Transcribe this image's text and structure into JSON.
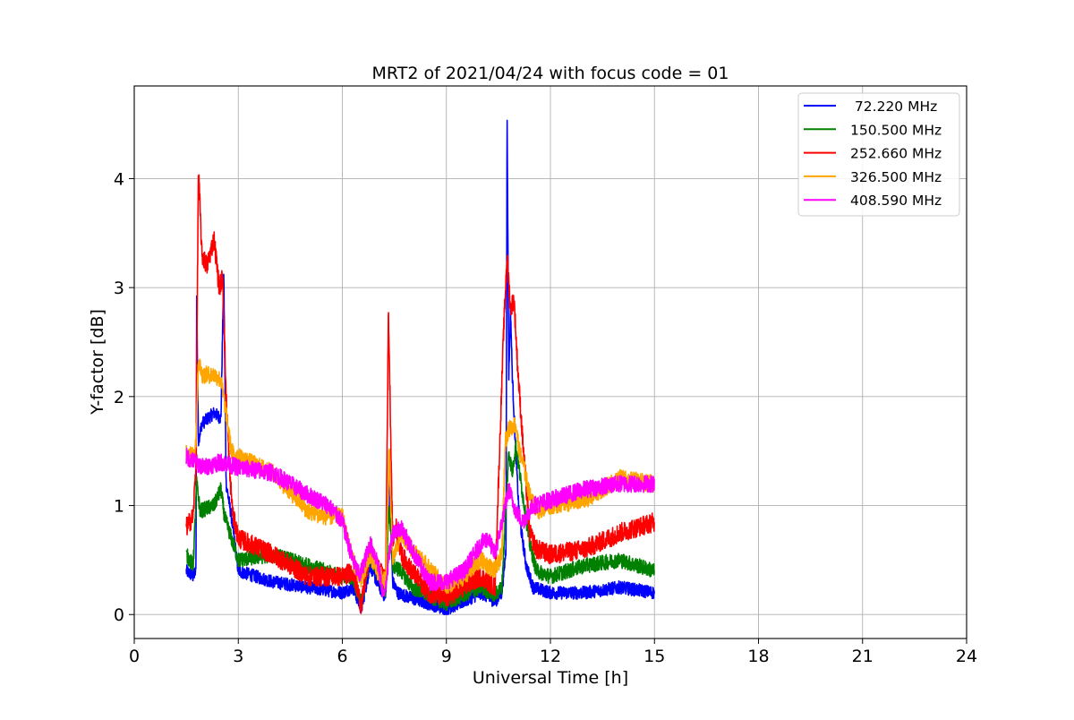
{
  "chart_data": {
    "type": "line",
    "title": "MRT2 of 2021/04/24 with focus code = 01",
    "xlabel": "Universal Time [h]",
    "ylabel": "Y-factor [dB]",
    "xlim": [
      0,
      24
    ],
    "ylim": [
      -0.22,
      4.85
    ],
    "xticks": [
      0,
      3,
      6,
      9,
      12,
      15,
      18,
      21,
      24
    ],
    "xtick_labels": [
      "0",
      "3",
      "6",
      "9",
      "12",
      "15",
      "18",
      "21",
      "24"
    ],
    "yticks": [
      0,
      1,
      2,
      3,
      4
    ],
    "ytick_labels": [
      "0",
      "1",
      "2",
      "3",
      "4"
    ],
    "grid": true,
    "legend_position": "top-right",
    "series": [
      {
        "name": " 72.220 MHz",
        "color": "#0000ff",
        "noise": 0.06,
        "x": [
          1.5,
          1.7,
          1.78,
          1.8,
          1.85,
          1.95,
          2.3,
          2.5,
          2.58,
          2.65,
          2.8,
          3.0,
          4.0,
          5.0,
          6.0,
          6.3,
          6.55,
          6.8,
          7.0,
          7.25,
          7.35,
          7.45,
          7.6,
          8.0,
          9.0,
          9.5,
          10.0,
          10.4,
          10.6,
          10.72,
          10.75,
          10.8,
          10.85,
          10.9,
          11.0,
          11.1,
          11.3,
          11.5,
          12.0,
          13.0,
          14.0,
          15.0
        ],
        "y": [
          0.4,
          0.35,
          0.4,
          2.9,
          1.6,
          1.75,
          1.85,
          1.8,
          3.15,
          1.2,
          0.9,
          0.4,
          0.3,
          0.25,
          0.2,
          0.25,
          0.05,
          0.45,
          0.3,
          0.15,
          1.3,
          0.3,
          0.2,
          0.15,
          0.05,
          0.12,
          0.2,
          0.12,
          0.2,
          0.6,
          4.6,
          2.2,
          2.8,
          2.2,
          1.5,
          0.9,
          0.45,
          0.25,
          0.2,
          0.2,
          0.25,
          0.2
        ]
      },
      {
        "name": "150.500 MHz",
        "color": "#008000",
        "noise": 0.07,
        "x": [
          1.5,
          1.7,
          1.8,
          1.9,
          2.3,
          2.5,
          2.6,
          2.8,
          3.0,
          4.0,
          5.0,
          6.0,
          6.3,
          6.55,
          6.8,
          7.0,
          7.25,
          7.35,
          7.45,
          7.7,
          8.0,
          9.0,
          9.5,
          10.0,
          10.4,
          10.6,
          10.8,
          10.9,
          11.0,
          11.2,
          11.4,
          11.6,
          12.0,
          13.0,
          14.0,
          15.0
        ],
        "y": [
          0.55,
          0.45,
          1.2,
          0.95,
          1.0,
          1.15,
          0.9,
          0.7,
          0.5,
          0.55,
          0.45,
          0.35,
          0.35,
          0.1,
          0.55,
          0.4,
          0.2,
          1.0,
          0.45,
          0.4,
          0.25,
          0.1,
          0.18,
          0.25,
          0.18,
          0.25,
          1.5,
          1.3,
          1.55,
          1.1,
          0.65,
          0.4,
          0.35,
          0.45,
          0.5,
          0.4
        ]
      },
      {
        "name": "252.660 MHz",
        "color": "#ff0000",
        "noise": 0.09,
        "x": [
          1.5,
          1.7,
          1.78,
          1.85,
          1.95,
          2.1,
          2.3,
          2.45,
          2.55,
          2.65,
          2.75,
          2.85,
          3.0,
          4.0,
          5.0,
          6.0,
          6.3,
          6.55,
          6.8,
          7.0,
          7.25,
          7.33,
          7.45,
          7.55,
          7.7,
          8.0,
          8.5,
          9.0,
          9.5,
          10.0,
          10.4,
          10.65,
          10.75,
          10.85,
          10.95,
          11.05,
          11.2,
          11.4,
          11.6,
          12.0,
          13.0,
          14.0,
          15.0
        ],
        "y": [
          0.8,
          0.9,
          1.4,
          4.1,
          3.3,
          3.2,
          3.45,
          3.0,
          3.1,
          2.0,
          1.3,
          0.9,
          0.7,
          0.55,
          0.35,
          0.35,
          0.4,
          0.08,
          0.6,
          0.45,
          0.3,
          2.8,
          0.7,
          0.8,
          0.55,
          0.4,
          0.2,
          0.15,
          0.25,
          0.35,
          0.25,
          2.6,
          3.3,
          2.8,
          2.9,
          2.3,
          1.6,
          0.75,
          0.6,
          0.55,
          0.6,
          0.75,
          0.85
        ]
      },
      {
        "name": "326.500 MHz",
        "color": "#ffa500",
        "noise": 0.08,
        "x": [
          1.5,
          1.7,
          1.78,
          1.85,
          1.95,
          2.3,
          2.5,
          2.6,
          2.8,
          3.0,
          4.0,
          5.0,
          5.5,
          6.0,
          6.3,
          6.55,
          6.8,
          7.0,
          7.25,
          7.35,
          7.45,
          7.7,
          8.0,
          9.0,
          9.5,
          10.0,
          10.4,
          10.6,
          10.7,
          10.8,
          11.0,
          11.1,
          11.2,
          11.4,
          11.6,
          12.0,
          13.0,
          14.0,
          15.0
        ],
        "y": [
          1.5,
          1.45,
          1.6,
          2.35,
          2.2,
          2.2,
          2.15,
          1.95,
          1.5,
          1.45,
          1.3,
          0.95,
          0.9,
          0.9,
          0.5,
          0.3,
          0.55,
          0.4,
          0.3,
          1.5,
          0.5,
          0.75,
          0.6,
          0.25,
          0.35,
          0.5,
          0.4,
          0.55,
          1.6,
          1.7,
          1.75,
          1.5,
          1.4,
          1.1,
          0.95,
          1.0,
          1.05,
          1.25,
          1.2
        ]
      },
      {
        "name": "408.590 MHz",
        "color": "#ff00ff",
        "noise": 0.08,
        "x": [
          1.5,
          2.0,
          2.5,
          3.0,
          4.0,
          5.0,
          5.6,
          6.0,
          6.3,
          6.5,
          6.8,
          7.0,
          7.2,
          7.35,
          7.45,
          7.7,
          8.0,
          8.5,
          9.0,
          9.5,
          10.0,
          10.2,
          10.4,
          10.6,
          10.8,
          11.0,
          11.2,
          11.5,
          12.0,
          13.0,
          14.0,
          15.0
        ],
        "y": [
          1.45,
          1.35,
          1.4,
          1.35,
          1.3,
          1.1,
          1.0,
          0.85,
          0.5,
          0.35,
          0.65,
          0.5,
          0.15,
          0.55,
          0.75,
          0.8,
          0.6,
          0.3,
          0.3,
          0.4,
          0.65,
          0.7,
          0.55,
          0.85,
          1.15,
          0.95,
          0.85,
          1.0,
          1.05,
          1.15,
          1.2,
          1.2
        ]
      }
    ]
  }
}
